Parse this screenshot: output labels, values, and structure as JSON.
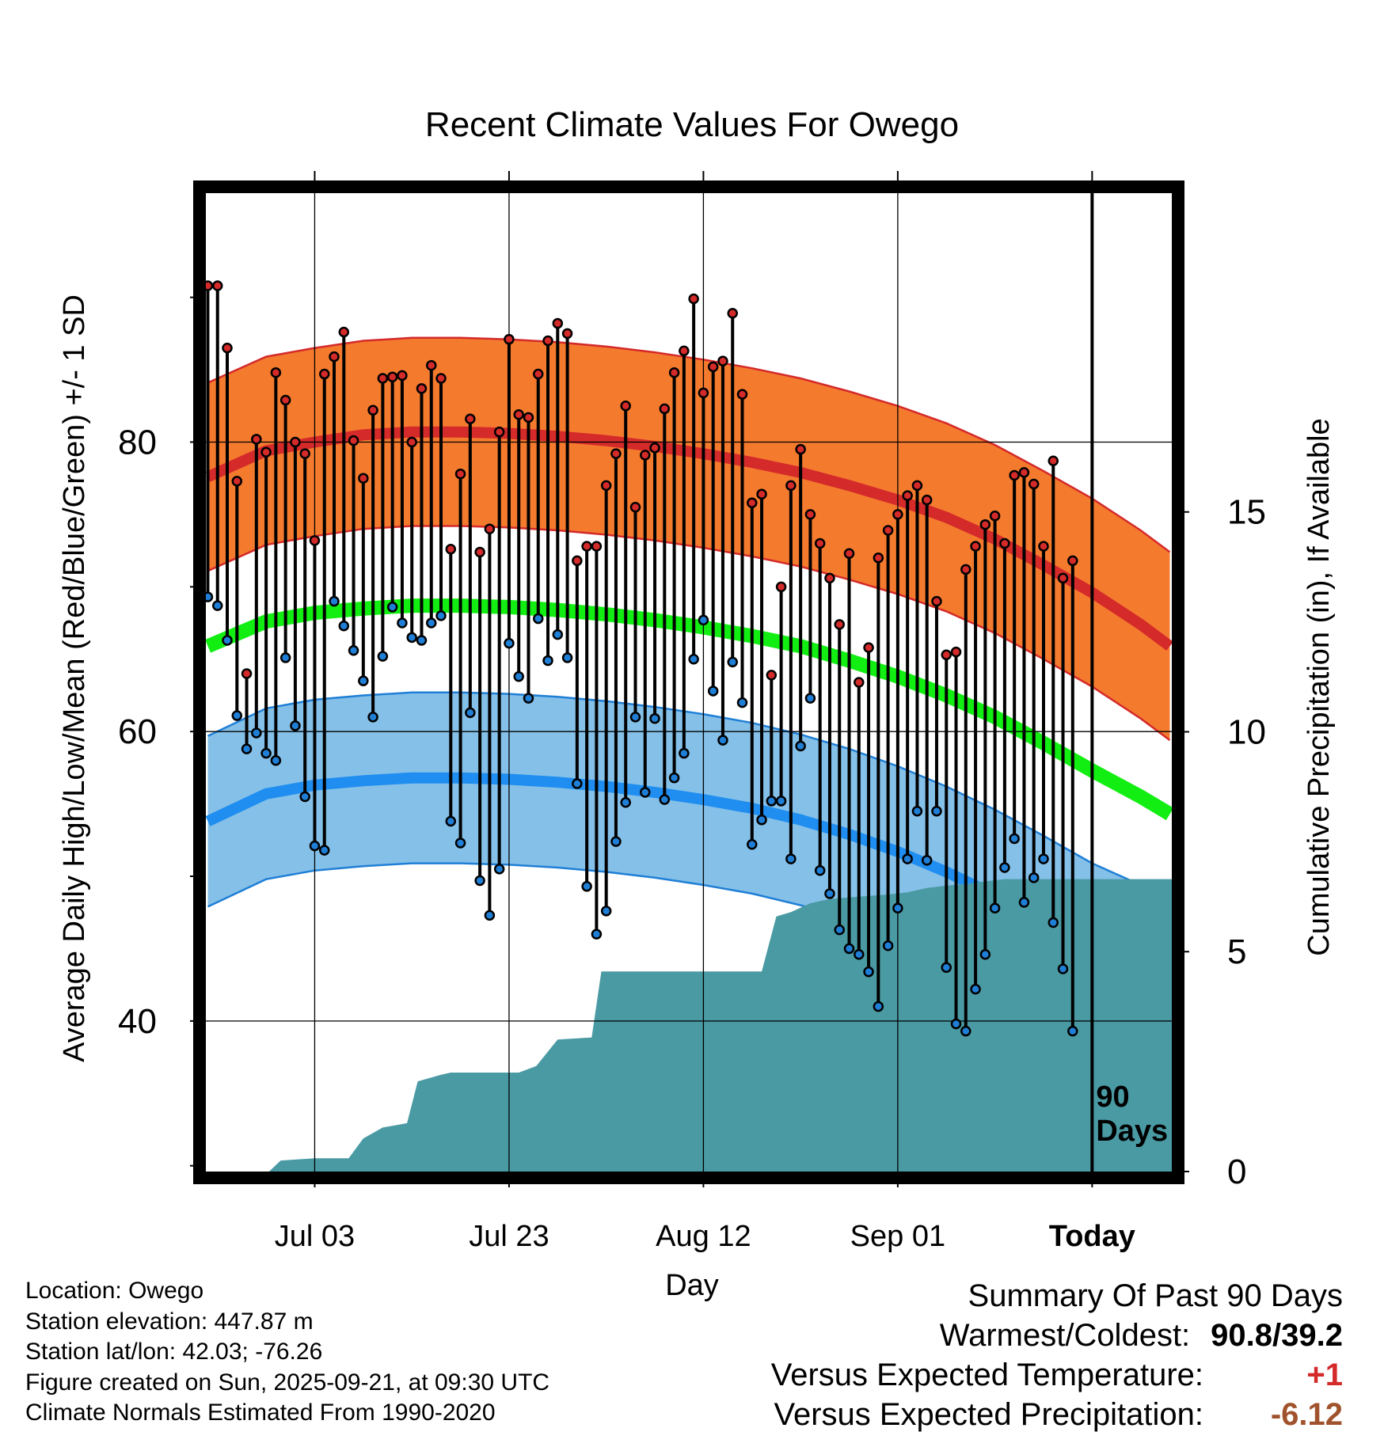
{
  "chart_data": {
    "type": "line",
    "title": "Recent Climate Values For Owego",
    "xlabel": "Day",
    "ylabel": "Average Daily High/Low/Mean (Red/Blue/Green) +/- 1 SD",
    "y2label": "Cumulative Precipitation (in), If Available",
    "ylim": [
      29.6,
      97.2
    ],
    "y2lim": [
      0,
      22.25
    ],
    "xlim": [
      -11.2,
      88.2
    ],
    "yticks": [
      40,
      60,
      80
    ],
    "y_minor_ticks": [
      30,
      50,
      70,
      90
    ],
    "y2ticks": [
      0,
      5,
      10,
      15
    ],
    "xticks": [
      {
        "day": 0,
        "label": "Jul 03"
      },
      {
        "day": 20,
        "label": "Jul 23"
      },
      {
        "day": 40,
        "label": "Aug 12"
      },
      {
        "day": 60,
        "label": "Sep 01"
      },
      {
        "day": 80,
        "label": "Today"
      }
    ],
    "today_day": 80,
    "today_label": [
      "90",
      "Days"
    ],
    "normals": {
      "days": [
        -11,
        -5,
        0,
        5,
        10,
        15,
        20,
        25,
        30,
        35,
        40,
        45,
        50,
        55,
        60,
        65,
        70,
        75,
        80,
        85,
        88
      ],
      "high_mean": [
        77.6,
        79.4,
        80.0,
        80.5,
        80.7,
        80.7,
        80.6,
        80.4,
        80.1,
        79.7,
        79.2,
        78.6,
        77.9,
        77.0,
        76.0,
        74.8,
        73.3,
        71.5,
        69.6,
        67.4,
        65.9
      ],
      "high_sd": 6.5,
      "low_mean": 53.8,
      "_low_note": "see low_mean_curve",
      "low_mean_curve": [
        53.8,
        55.7,
        56.3,
        56.6,
        56.8,
        56.8,
        56.7,
        56.5,
        56.2,
        55.8,
        55.3,
        54.7,
        53.9,
        52.9,
        51.7,
        50.3,
        48.7,
        46.9,
        45.0,
        43.5,
        42.5
      ],
      "low_sd": 5.9,
      "mean_curve": [
        65.9,
        67.6,
        68.2,
        68.5,
        68.7,
        68.7,
        68.6,
        68.4,
        68.1,
        67.7,
        67.2,
        66.6,
        65.9,
        64.9,
        63.8,
        62.5,
        61.0,
        59.2,
        57.3,
        55.5,
        54.3
      ]
    },
    "series": [
      {
        "name": "Daily High",
        "color": "#d42a2a",
        "values": [
          90.8,
          90.8,
          86.5,
          77.3,
          64.0,
          80.2,
          79.3,
          84.8,
          82.9,
          80.0,
          79.2,
          73.2,
          84.7,
          85.9,
          87.6,
          80.1,
          77.5,
          82.2,
          84.4,
          84.5,
          84.6,
          80.0,
          83.7,
          85.3,
          84.4,
          72.6,
          77.8,
          81.6,
          72.4,
          74.0,
          80.7,
          87.1,
          81.9,
          81.7,
          84.7,
          87.0,
          88.2,
          87.5,
          71.8,
          72.8,
          72.8,
          77.0,
          79.2,
          82.5,
          75.5,
          79.1,
          79.6,
          82.3,
          84.8,
          86.3,
          89.9,
          83.4,
          85.2,
          85.6,
          88.9,
          83.3,
          75.8,
          76.4,
          63.9,
          70.0,
          77.0,
          79.5,
          75.0,
          73.0,
          70.6,
          67.4,
          72.3,
          63.4,
          65.8,
          72.0,
          73.9,
          75.0,
          76.3,
          77.0,
          76.0,
          69.0,
          65.3,
          65.5,
          71.2,
          72.8,
          74.3,
          74.9,
          73.0,
          77.7,
          77.9,
          77.1,
          72.8,
          78.7,
          70.6,
          71.8
        ]
      },
      {
        "name": "Daily Low",
        "color": "#1f7fd6",
        "values": [
          69.3,
          68.7,
          66.3,
          61.1,
          58.8,
          59.9,
          58.5,
          58.0,
          65.1,
          60.4,
          55.5,
          52.1,
          51.8,
          69.0,
          67.3,
          65.6,
          63.5,
          61.0,
          65.2,
          68.6,
          67.5,
          66.5,
          66.3,
          67.5,
          68.0,
          53.8,
          52.3,
          61.3,
          49.7,
          47.3,
          50.5,
          66.1,
          63.8,
          62.3,
          67.8,
          64.9,
          66.7,
          65.1,
          56.4,
          49.3,
          46.0,
          47.6,
          52.4,
          55.1,
          61.0,
          55.8,
          60.9,
          55.3,
          56.8,
          58.5,
          65.0,
          67.7,
          62.8,
          59.4,
          64.8,
          62.0,
          52.2,
          53.9,
          55.2,
          55.2,
          51.2,
          59.0,
          62.3,
          50.4,
          48.8,
          46.3,
          45.0,
          44.6,
          43.4,
          41.0,
          45.2,
          47.8,
          51.2,
          54.5,
          51.1,
          54.5,
          43.7,
          39.8,
          39.3,
          42.2,
          44.6,
          47.8,
          50.6,
          52.6,
          48.2,
          49.9,
          51.2,
          46.8,
          43.6,
          39.3
        ]
      },
      {
        "name": "Cumulative Precipitation",
        "color": "#4a9aa4",
        "days": [
          -11.0,
          -4.7,
          -3.5,
          0.0,
          3.5,
          5.0,
          7.0,
          9.5,
          10.6,
          13.0,
          14.0,
          18.0,
          21.0,
          22.8,
          25.0,
          28.5,
          29.5,
          39.0,
          46.0,
          47.5,
          49.0,
          51.0,
          53.0,
          56.0,
          59.0,
          61.0,
          63.0,
          65.0,
          67.5,
          69.0,
          71.0,
          88.2
        ],
        "values": [
          0.0,
          0.0,
          0.25,
          0.3,
          0.3,
          0.75,
          1.0,
          1.1,
          2.05,
          2.2,
          2.25,
          2.25,
          2.25,
          2.4,
          3.0,
          3.05,
          4.55,
          4.55,
          4.55,
          5.8,
          5.9,
          6.1,
          6.2,
          6.25,
          6.3,
          6.35,
          6.45,
          6.5,
          6.55,
          6.6,
          6.65,
          6.65
        ]
      }
    ]
  },
  "footer": {
    "location": "Location: Owego",
    "elevation": "Station elevation: 447.87 m",
    "latlon": "Station lat/lon: 42.03; -76.26",
    "created": "Figure created on Sun, 2025-09-21, at 09:30 UTC",
    "normals_note": "Climate Normals Estimated From 1990-2020"
  },
  "summary": {
    "heading": "Summary Of Past 90 Days",
    "warm_cold_label": "Warmest/Coldest:",
    "warm_cold_value": "90.8/39.2",
    "temp_label": "Versus Expected Temperature:",
    "temp_value": "+1",
    "temp_color": "#d42a2a",
    "precip_label": "Versus Expected Precipitation:",
    "precip_value": "-6.12",
    "precip_color": "#a0522d"
  }
}
